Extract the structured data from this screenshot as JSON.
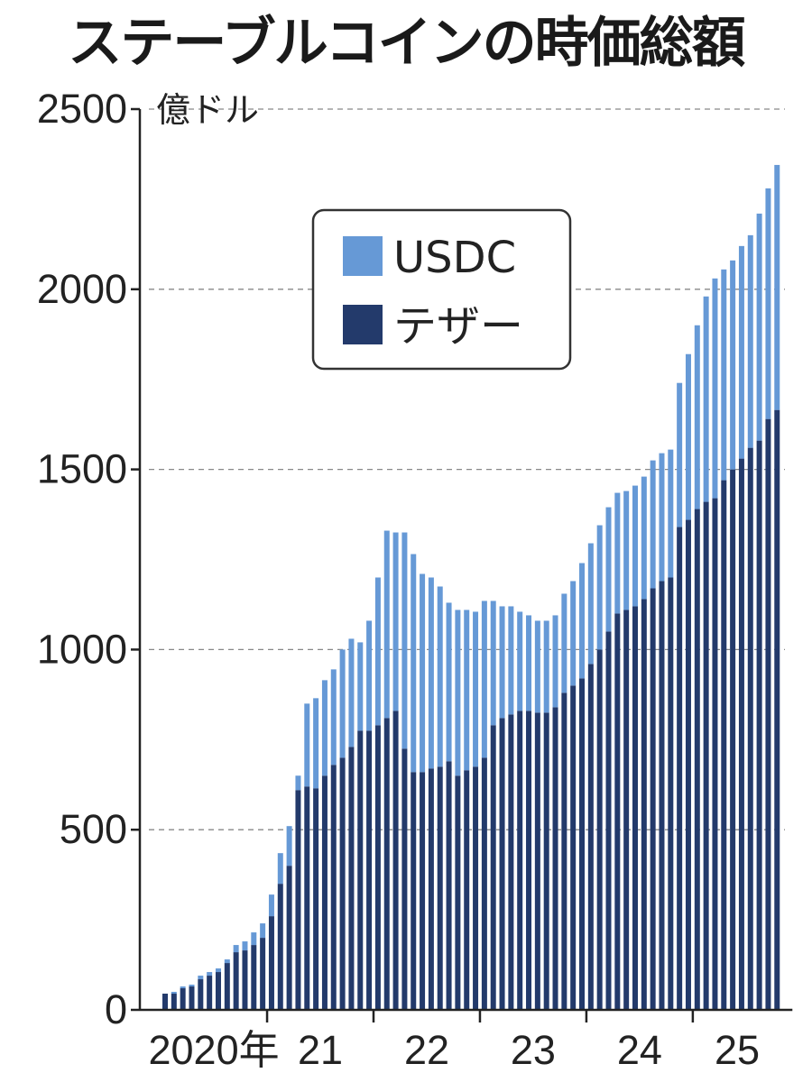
{
  "chart_data": {
    "type": "bar",
    "stacked": true,
    "title": "ステーブルコインの時価総額",
    "unit_label": "億ドル",
    "ylim": [
      0,
      2500
    ],
    "y_ticks": [
      0,
      500,
      1000,
      1500,
      2000,
      2500
    ],
    "grid": "horizontal dashed",
    "legend_position": "top-center",
    "x_period_labels": [
      "2020年",
      "21",
      "22",
      "23",
      "24",
      "25"
    ],
    "months_per_period": 12,
    "series": [
      {
        "name": "テザー",
        "color": "#233a6b",
        "values": [
          45,
          45,
          60,
          65,
          85,
          95,
          105,
          130,
          160,
          165,
          180,
          200,
          260,
          350,
          400,
          610,
          620,
          615,
          650,
          680,
          700,
          730,
          775,
          775,
          790,
          810,
          830,
          725,
          660,
          660,
          670,
          675,
          690,
          650,
          665,
          675,
          700,
          790,
          810,
          820,
          830,
          830,
          825,
          825,
          840,
          880,
          900,
          920,
          960,
          1000,
          1050,
          1100,
          1110,
          1120,
          1140,
          1170,
          1190,
          1200,
          1340,
          1360,
          1390,
          1410,
          1420,
          1470,
          1500,
          1530,
          1560,
          1580,
          1640,
          1665
        ]
      },
      {
        "name": "USDC",
        "color": "#6699d6",
        "values": [
          0,
          5,
          5,
          5,
          10,
          10,
          10,
          10,
          20,
          25,
          35,
          40,
          60,
          85,
          110,
          40,
          230,
          250,
          265,
          265,
          300,
          300,
          245,
          305,
          410,
          520,
          495,
          600,
          605,
          550,
          530,
          500,
          440,
          460,
          445,
          430,
          435,
          345,
          310,
          300,
          275,
          265,
          255,
          255,
          255,
          275,
          290,
          320,
          335,
          345,
          345,
          335,
          330,
          335,
          340,
          355,
          355,
          355,
          400,
          460,
          510,
          570,
          610,
          585,
          580,
          590,
          590,
          630,
          640,
          680
        ]
      }
    ]
  }
}
